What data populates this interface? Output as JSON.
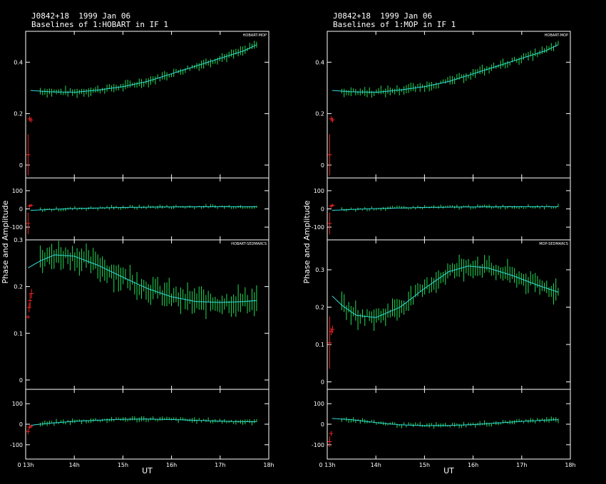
{
  "colors": {
    "background": "#000000",
    "frame": "#ffffff",
    "data": "#22dd55",
    "model": "#33dddd",
    "flagged": "#ee2222"
  },
  "figures": [
    {
      "title": "J0842+18  1999 Jan 06",
      "subtitle": "Baselines of 1:HOBART in IF 1",
      "ylabel": "Phase and Amplitude",
      "xlabel": "UT",
      "x_ticks": [
        "0 13h",
        "14h",
        "15h",
        "16h",
        "17h",
        "18h"
      ]
    },
    {
      "title": "J0842+18  1999 Jan 06",
      "subtitle": "Baselines of 1:MOP in IF 1",
      "ylabel": "Phase and Amplitude",
      "xlabel": "UT",
      "x_ticks": [
        "0 13h",
        "14h",
        "15h",
        "16h",
        "17h",
        "18h"
      ]
    }
  ],
  "chart_data": [
    {
      "type": "scatter",
      "panel": "HOBART-MOP amplitude",
      "label": "HOBART-MOP",
      "xlim": [
        13.0,
        18.0
      ],
      "ylim": [
        -0.05,
        0.52
      ],
      "y_ticks": [
        "0",
        "0.2",
        "0.4"
      ],
      "model": {
        "x": [
          13.1,
          13.5,
          14.0,
          14.5,
          15.0,
          15.5,
          16.0,
          16.5,
          17.0,
          17.5,
          17.75
        ],
        "y": [
          0.29,
          0.285,
          0.283,
          0.292,
          0.305,
          0.325,
          0.355,
          0.385,
          0.415,
          0.445,
          0.468
        ]
      },
      "flagged": [
        {
          "x": 13.05,
          "y": 0.04,
          "err": 0.08
        },
        {
          "x": 13.08,
          "y": 0.18,
          "err": 0.01
        },
        {
          "x": 13.11,
          "y": 0.175,
          "err": 0.01
        }
      ]
    },
    {
      "type": "scatter",
      "panel": "HOBART-MOP phase",
      "label": "",
      "xlim": [
        13.0,
        18.0
      ],
      "ylim": [
        -170,
        170
      ],
      "y_ticks": [
        "-100",
        "0",
        "100"
      ],
      "model": {
        "x": [
          13.1,
          13.5,
          14.0,
          15.0,
          16.0,
          17.0,
          17.75
        ],
        "y": [
          -8,
          -3,
          2,
          8,
          11,
          12,
          12
        ]
      },
      "flagged": [
        {
          "x": 13.05,
          "y": -80,
          "err": 60
        },
        {
          "x": 13.08,
          "y": 15,
          "err": 10
        },
        {
          "x": 13.11,
          "y": 20,
          "err": 8
        }
      ]
    },
    {
      "type": "scatter",
      "panel": "HOBART-SEDMARCS amplitude",
      "label": "HOBART-SEDMARCS",
      "xlim": [
        13.0,
        18.0
      ],
      "ylim": [
        -0.02,
        0.3
      ],
      "y_ticks": [
        "0",
        "0.1",
        "0.2",
        "0.3"
      ],
      "model": {
        "x": [
          13.05,
          13.3,
          13.6,
          14.0,
          14.5,
          15.0,
          15.5,
          16.0,
          16.5,
          17.0,
          17.5,
          17.75
        ],
        "y": [
          0.24,
          0.255,
          0.268,
          0.265,
          0.245,
          0.22,
          0.196,
          0.178,
          0.168,
          0.166,
          0.168,
          0.17
        ]
      },
      "flagged": [
        {
          "x": 13.05,
          "y": 0.135,
          "err": 0.004
        },
        {
          "x": 13.07,
          "y": 0.155,
          "err": 0.01
        },
        {
          "x": 13.09,
          "y": 0.17,
          "err": 0.015
        },
        {
          "x": 13.12,
          "y": 0.185,
          "err": 0.01
        }
      ]
    },
    {
      "type": "scatter",
      "panel": "HOBART-SEDMARCS phase",
      "label": "",
      "xlim": [
        13.0,
        18.0
      ],
      "ylim": [
        -170,
        170
      ],
      "y_ticks": [
        "-100",
        "0",
        "100"
      ],
      "model": {
        "x": [
          13.1,
          13.5,
          14.0,
          14.5,
          15.0,
          15.5,
          16.0,
          16.5,
          17.0,
          17.5,
          17.75
        ],
        "y": [
          -5,
          5,
          14,
          20,
          24,
          25,
          23,
          19,
          15,
          12,
          12
        ]
      },
      "flagged": [
        {
          "x": 13.05,
          "y": -35,
          "err": 15
        },
        {
          "x": 13.08,
          "y": -15,
          "err": 10
        },
        {
          "x": 13.11,
          "y": -10,
          "err": 8
        }
      ]
    },
    {
      "type": "scatter",
      "panel": "HOBART-MOP amplitude (MOP ref)",
      "label": "HOBART-MOP",
      "xlim": [
        13.0,
        18.0
      ],
      "ylim": [
        -0.05,
        0.52
      ],
      "y_ticks": [
        "0",
        "0.2",
        "0.4"
      ],
      "model": {
        "x": [
          13.1,
          13.5,
          14.0,
          14.5,
          15.0,
          15.5,
          16.0,
          16.5,
          17.0,
          17.5,
          17.75
        ],
        "y": [
          0.29,
          0.285,
          0.283,
          0.292,
          0.305,
          0.325,
          0.355,
          0.385,
          0.415,
          0.445,
          0.468
        ]
      },
      "flagged": [
        {
          "x": 13.05,
          "y": 0.04,
          "err": 0.08
        },
        {
          "x": 13.08,
          "y": 0.18,
          "err": 0.01
        },
        {
          "x": 13.11,
          "y": 0.175,
          "err": 0.01
        }
      ]
    },
    {
      "type": "scatter",
      "panel": "HOBART-MOP phase (MOP ref)",
      "label": "",
      "xlim": [
        13.0,
        18.0
      ],
      "ylim": [
        -170,
        170
      ],
      "y_ticks": [
        "-100",
        "0",
        "100"
      ],
      "model": {
        "x": [
          13.1,
          13.5,
          14.0,
          15.0,
          16.0,
          17.0,
          17.75
        ],
        "y": [
          -8,
          -3,
          2,
          8,
          11,
          12,
          12
        ]
      },
      "flagged": [
        {
          "x": 13.05,
          "y": -80,
          "err": 60
        },
        {
          "x": 13.08,
          "y": 15,
          "err": 10
        },
        {
          "x": 13.11,
          "y": 20,
          "err": 8
        }
      ]
    },
    {
      "type": "scatter",
      "panel": "MOP-SEDMARCS amplitude",
      "label": "MOP-SEDMARCS",
      "xlim": [
        13.0,
        18.0
      ],
      "ylim": [
        -0.02,
        0.38
      ],
      "y_ticks": [
        "0",
        "0.1",
        "0.2",
        "0.3"
      ],
      "model": {
        "x": [
          13.1,
          13.3,
          13.6,
          14.0,
          14.5,
          15.0,
          15.5,
          15.9,
          16.3,
          16.8,
          17.3,
          17.75
        ],
        "y": [
          0.23,
          0.205,
          0.178,
          0.172,
          0.2,
          0.25,
          0.295,
          0.31,
          0.305,
          0.285,
          0.26,
          0.24
        ]
      },
      "flagged": [
        {
          "x": 13.05,
          "y": 0.105,
          "err": 0.07
        },
        {
          "x": 13.08,
          "y": 0.135,
          "err": 0.01
        },
        {
          "x": 13.11,
          "y": 0.14,
          "err": 0.01
        }
      ]
    },
    {
      "type": "scatter",
      "panel": "MOP-SEDMARCS phase",
      "label": "",
      "xlim": [
        13.0,
        18.0
      ],
      "ylim": [
        -170,
        170
      ],
      "y_ticks": [
        "-100",
        "0",
        "100"
      ],
      "model": {
        "x": [
          13.1,
          13.5,
          14.0,
          14.5,
          15.0,
          15.5,
          16.0,
          16.5,
          17.0,
          17.5,
          17.75
        ],
        "y": [
          28,
          22,
          8,
          -3,
          -7,
          -6,
          -2,
          6,
          14,
          20,
          22
        ]
      },
      "flagged": [
        {
          "x": 13.05,
          "y": -85,
          "err": 25
        },
        {
          "x": 13.08,
          "y": -45,
          "err": 12
        }
      ]
    }
  ]
}
